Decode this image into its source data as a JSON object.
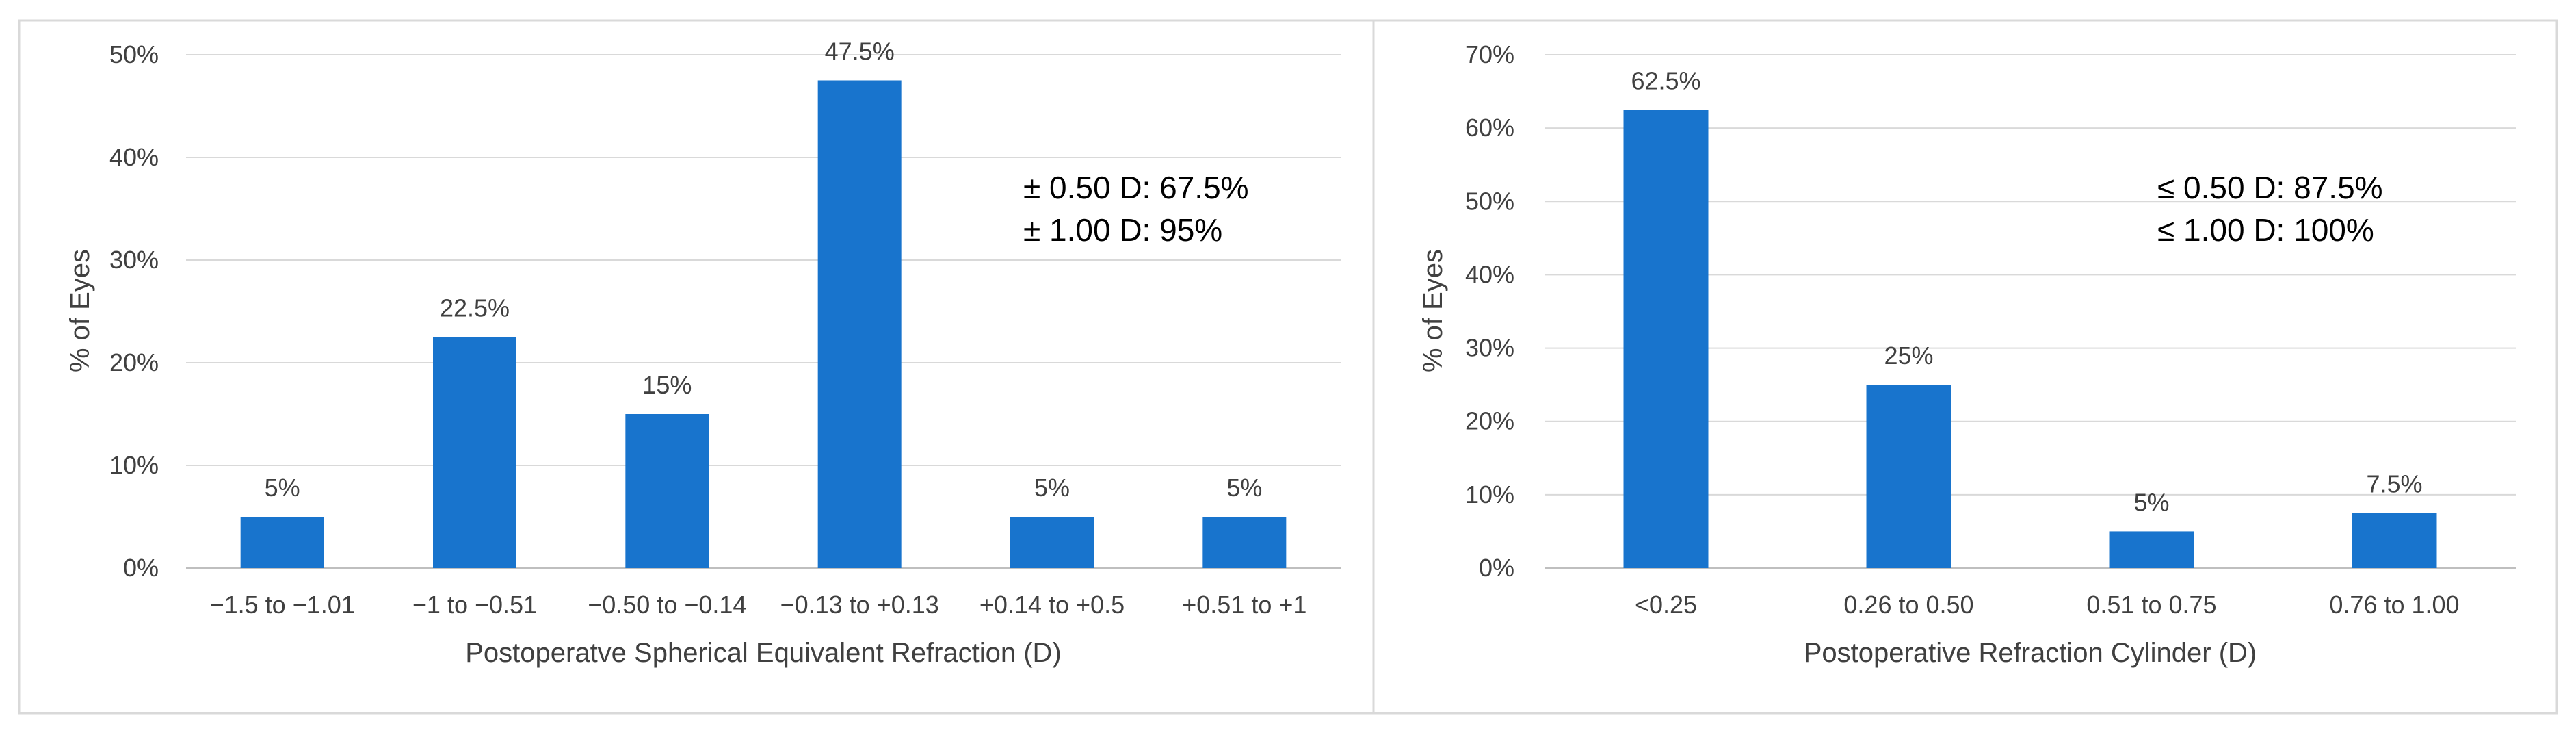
{
  "colors": {
    "bar": "#1874CD",
    "grid": "#D9D9D9",
    "axis": "#BFBFBF",
    "text": "#404040",
    "frame": "#D9D9D9"
  },
  "chart_data": [
    {
      "type": "bar",
      "title": "",
      "xlabel": "Postoperatve Spherical Equivalent Refraction (D)",
      "ylabel": "% of Eyes",
      "ylim": [
        0,
        50
      ],
      "yticks": [
        "0%",
        "10%",
        "20%",
        "30%",
        "40%",
        "50%"
      ],
      "ytick_values": [
        0,
        10,
        20,
        30,
        40,
        50
      ],
      "grid": true,
      "categories": [
        "−1.5 to −1.01",
        "−1 to −0.51",
        "−0.50 to −0.14",
        "−0.13 to +0.13",
        "+0.14 to +0.5",
        "+0.51 to +1"
      ],
      "values": [
        5,
        22.5,
        15,
        47.5,
        5,
        5
      ],
      "data_labels": [
        "5%",
        "22.5%",
        "15%",
        "47.5%",
        "5%",
        "5%"
      ],
      "annotations": [
        "± 0.50 D: 67.5%",
        "± 1.00 D: 95%"
      ]
    },
    {
      "type": "bar",
      "title": "",
      "xlabel": "Postoperative Refraction Cylinder (D)",
      "ylabel": "% of Eyes",
      "ylim": [
        0,
        70
      ],
      "yticks": [
        "0%",
        "10%",
        "20%",
        "30%",
        "40%",
        "50%",
        "60%",
        "70%"
      ],
      "ytick_values": [
        0,
        10,
        20,
        30,
        40,
        50,
        60,
        70
      ],
      "grid": true,
      "categories": [
        "<0.25",
        "0.26 to 0.50",
        "0.51 to 0.75",
        "0.76 to 1.00"
      ],
      "values": [
        62.5,
        25,
        5,
        7.5
      ],
      "data_labels": [
        "62.5%",
        "25%",
        "5%",
        "7.5%"
      ],
      "annotations": [
        "≤ 0.50 D: 87.5%",
        "≤ 1.00 D: 100%"
      ]
    }
  ]
}
